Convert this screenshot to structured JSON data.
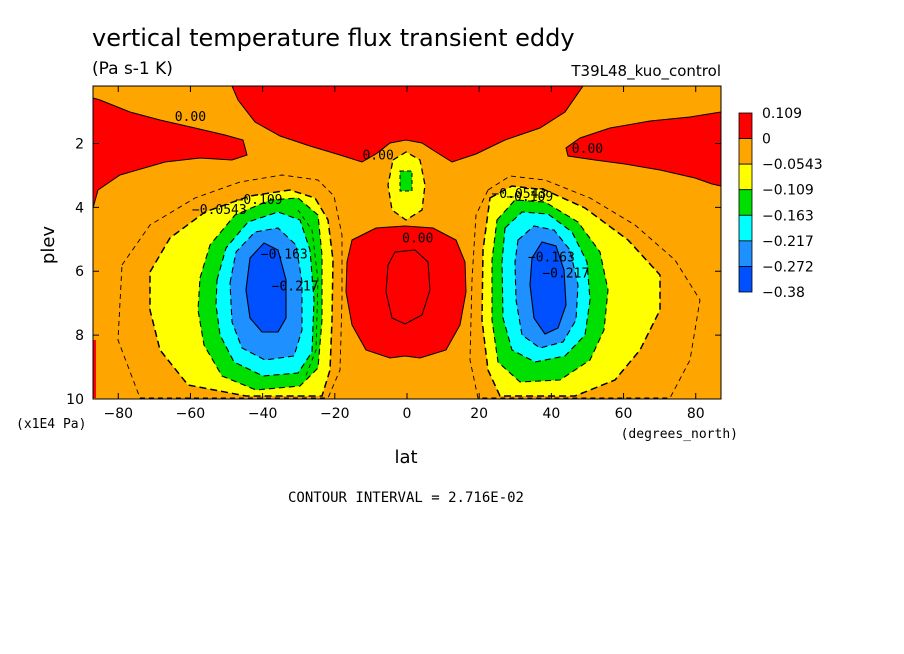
{
  "chart_data": {
    "type": "contour",
    "title": "vertical temperature flux transient eddy",
    "units": "(Pa s-1 K)",
    "dataset": "T39L48_kuo_control",
    "xlabel": "lat",
    "x_units": "(degrees_north)",
    "ylabel": "plev",
    "y_units": "(x1E4 Pa)",
    "xlim": [
      -87,
      87
    ],
    "ylim": [
      10,
      0.2
    ],
    "x_ticks": [
      -80,
      -60,
      -40,
      -20,
      0,
      20,
      40,
      60,
      80
    ],
    "y_ticks": [
      2,
      4,
      6,
      8,
      10
    ],
    "x_tick_labels": [
      "-80",
      "-60",
      "-40",
      "-20",
      "0",
      "20",
      "40",
      "60",
      "80"
    ],
    "y_tick_labels": [
      "2",
      "4",
      "6",
      "8",
      "10"
    ],
    "contour_interval_text": "CONTOUR INTERVAL = 2.716E-02",
    "legend": {
      "placement": "right",
      "labels": [
        "0.109",
        "0",
        "-0.0543",
        "-0.109",
        "-0.163",
        "-0.217",
        "-0.272",
        "-0.38"
      ],
      "colors": [
        "#ff0000",
        "#ffa500",
        "#ffff00",
        "#00e000",
        "#00ffff",
        "#1e90ff",
        "#0050ff"
      ]
    },
    "contour_labels": [
      {
        "text": "0.00",
        "lat": -60,
        "plev": 1.3
      },
      {
        "text": "0.00",
        "lat": -8,
        "plev": 2.5
      },
      {
        "text": "0.00",
        "lat": 50,
        "plev": 2.3
      },
      {
        "text": "0.00",
        "lat": 3,
        "plev": 5.1
      },
      {
        "text": "-0.0543",
        "lat": -52,
        "plev": 4.2
      },
      {
        "text": "-0.109",
        "lat": -41,
        "plev": 3.9
      },
      {
        "text": "-0.163",
        "lat": -34,
        "plev": 5.6
      },
      {
        "text": "-0.217",
        "lat": -31,
        "plev": 6.6
      },
      {
        "text": "-0.0543",
        "lat": 31,
        "plev": 3.7
      },
      {
        "text": "-0.109",
        "lat": 34,
        "plev": 3.8
      },
      {
        "text": "-0.163",
        "lat": 40,
        "plev": 5.7
      },
      {
        "text": "-0.217",
        "lat": 44,
        "plev": 6.2
      }
    ],
    "extrema": [
      {
        "kind": "min",
        "lat": -40,
        "plev": 6.5,
        "approx_value": -0.38
      },
      {
        "kind": "min",
        "lat": 40,
        "plev": 6.3,
        "approx_value": -0.38
      },
      {
        "kind": "max",
        "lat": 0,
        "plev": 7.0,
        "approx_value": 0.109
      }
    ]
  }
}
